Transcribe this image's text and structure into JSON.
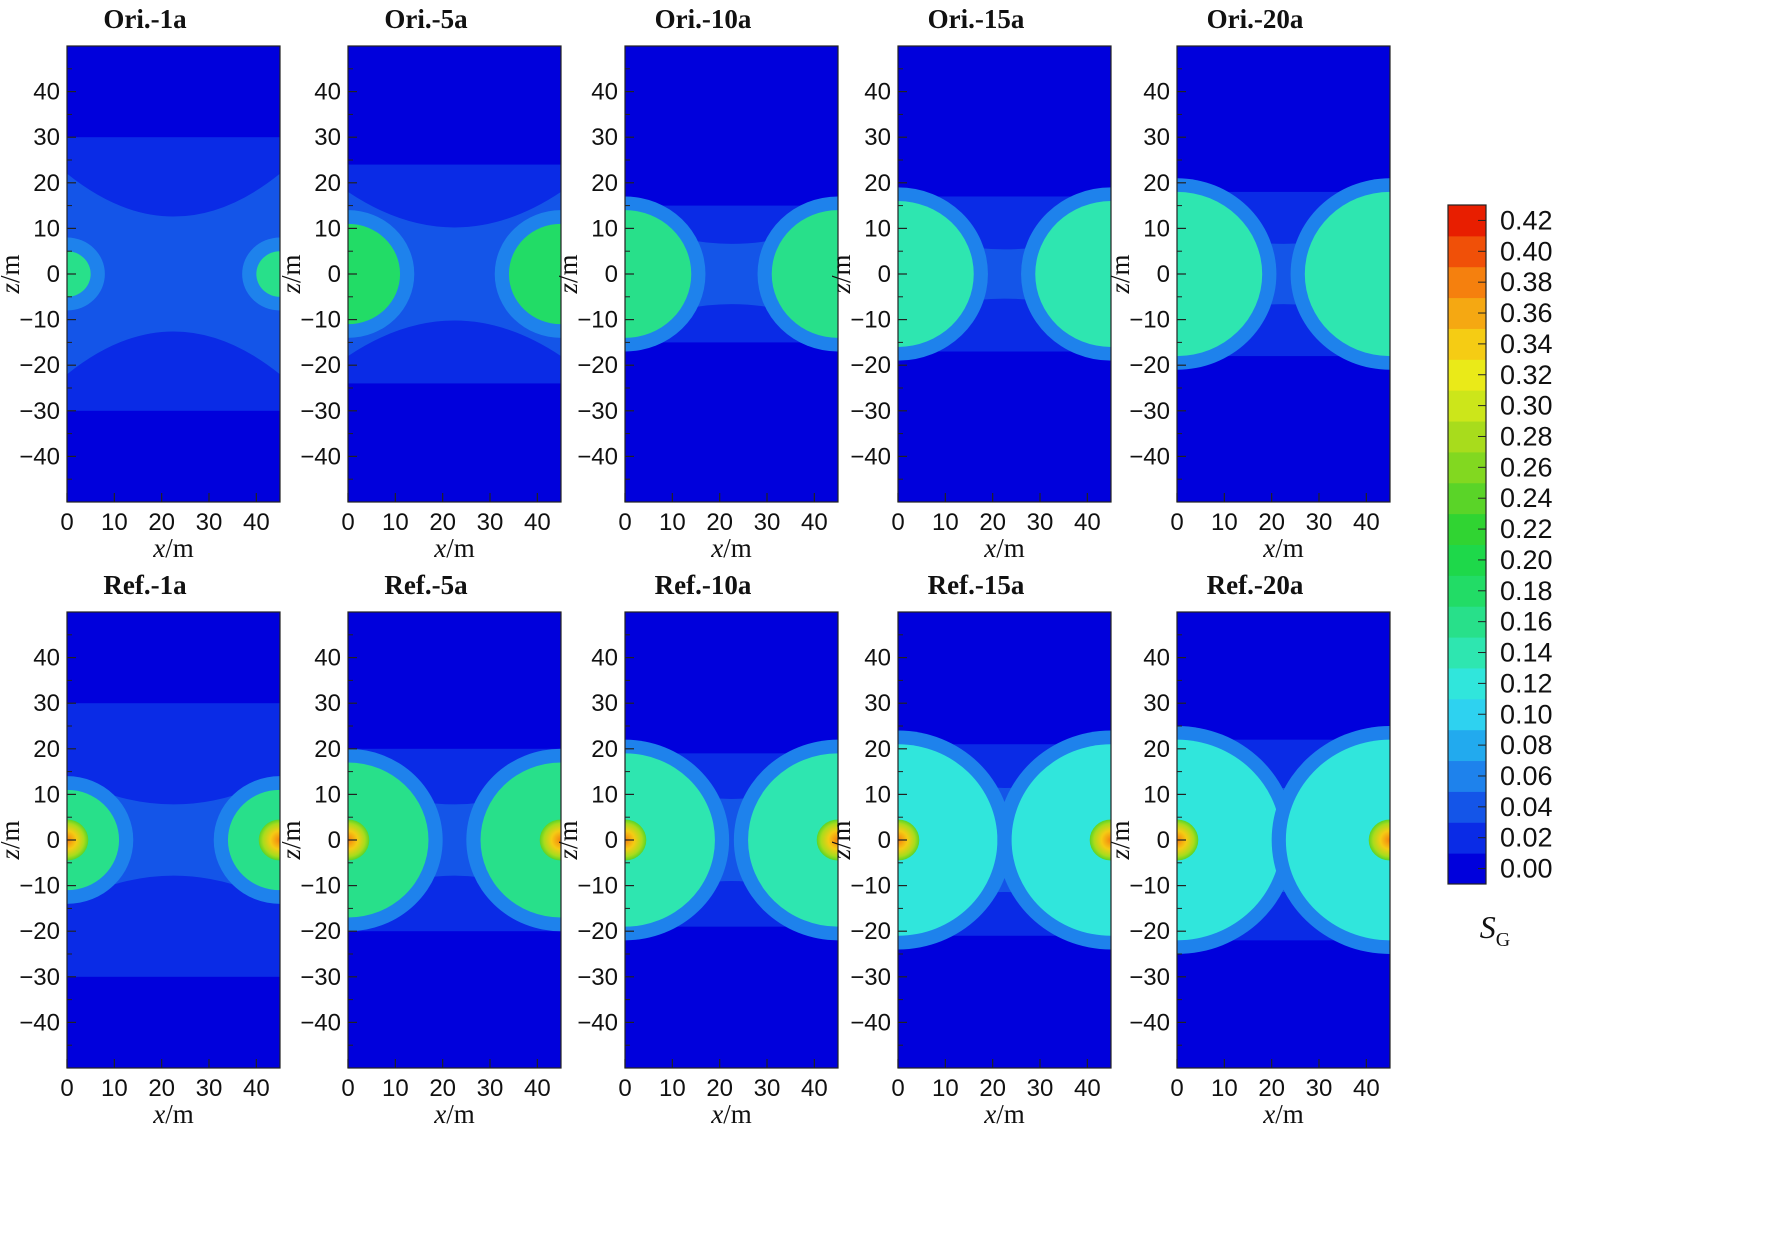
{
  "chart_data": {
    "type": "heatmap",
    "quantity": "S_G",
    "colorbar": {
      "label_main": "S",
      "label_sub": "G",
      "levels": [
        0.0,
        0.02,
        0.04,
        0.06,
        0.08,
        0.1,
        0.12,
        0.14,
        0.16,
        0.18,
        0.2,
        0.22,
        0.24,
        0.26,
        0.28,
        0.3,
        0.32,
        0.34,
        0.36,
        0.38,
        0.4,
        0.42
      ],
      "tick_labels": [
        "0.00",
        "0.02",
        "0.04",
        "0.06",
        "0.08",
        "0.10",
        "0.12",
        "0.14",
        "0.16",
        "0.18",
        "0.20",
        "0.22",
        "0.24",
        "0.26",
        "0.28",
        "0.30",
        "0.32",
        "0.34",
        "0.36",
        "0.38",
        "0.40",
        "0.42"
      ],
      "colors": [
        "#0000dc",
        "#0a2be6",
        "#1455e8",
        "#1e82ec",
        "#22aaee",
        "#2ed2f0",
        "#30e6dc",
        "#2ee6b0",
        "#28e08a",
        "#22dc66",
        "#1ed84a",
        "#30d432",
        "#5ad428",
        "#82d820",
        "#a8dc1c",
        "#cce61a",
        "#eaea18",
        "#f5cc14",
        "#f5a812",
        "#f5800e",
        "#f05008",
        "#e81e00"
      ]
    },
    "xlim": [
      0,
      45
    ],
    "zlim": [
      -50,
      50
    ],
    "xticks": [
      0,
      10,
      20,
      30,
      40
    ],
    "zticks": [
      40,
      30,
      20,
      10,
      0,
      -10,
      -20,
      -30,
      -40
    ],
    "xtick_labels": [
      "0",
      "10",
      "20",
      "30",
      "40"
    ],
    "ztick_labels": [
      "40",
      "30",
      "20",
      "10",
      "0",
      "−10",
      "−20",
      "−30",
      "−40"
    ],
    "xlabel_var": "x",
    "xlabel_unit": "/m",
    "ylabel_var": "z",
    "ylabel_unit": "/m",
    "background_color": "#0000dc",
    "panels": [
      {
        "title": "Ori.-1a",
        "plume_radius": 5,
        "band_halfwidth": 30,
        "front_halfwidth": 16,
        "inner_color": "#28e08a",
        "hot_core": false
      },
      {
        "title": "Ori.-5a",
        "plume_radius": 11,
        "band_halfwidth": 24,
        "front_halfwidth": 12,
        "inner_color": "#22dc66",
        "hot_core": false
      },
      {
        "title": "Ori.-10a",
        "plume_radius": 14,
        "band_halfwidth": 15,
        "front_halfwidth": 6,
        "inner_color": "#28e08a",
        "hot_core": false
      },
      {
        "title": "Ori.-15a",
        "plume_radius": 16,
        "band_halfwidth": 17,
        "front_halfwidth": 4,
        "inner_color": "#2ee6b0",
        "hot_core": false
      },
      {
        "title": "Ori.-20a",
        "plume_radius": 18,
        "band_halfwidth": 18,
        "front_halfwidth": 6,
        "inner_color": "#2ee6b0",
        "hot_core": false
      },
      {
        "title": "Ref.-1a",
        "plume_radius": 11,
        "band_halfwidth": 30,
        "front_halfwidth": 8,
        "inner_color": "#28e08a",
        "hot_core": true
      },
      {
        "title": "Ref.-5a",
        "plume_radius": 17,
        "band_halfwidth": 20,
        "front_halfwidth": 8,
        "inner_color": "#28e08a",
        "hot_core": true
      },
      {
        "title": "Ref.-10a",
        "plume_radius": 19,
        "band_halfwidth": 19,
        "front_halfwidth": 10,
        "inner_color": "#2ee6b0",
        "hot_core": true
      },
      {
        "title": "Ref.-15a",
        "plume_radius": 21,
        "band_halfwidth": 21,
        "front_halfwidth": 14,
        "inner_color": "#30e6dc",
        "hot_core": true
      },
      {
        "title": "Ref.-20a",
        "plume_radius": 22,
        "band_halfwidth": 22,
        "front_halfwidth": 14,
        "inner_color": "#30e6dc",
        "hot_core": true
      }
    ]
  }
}
